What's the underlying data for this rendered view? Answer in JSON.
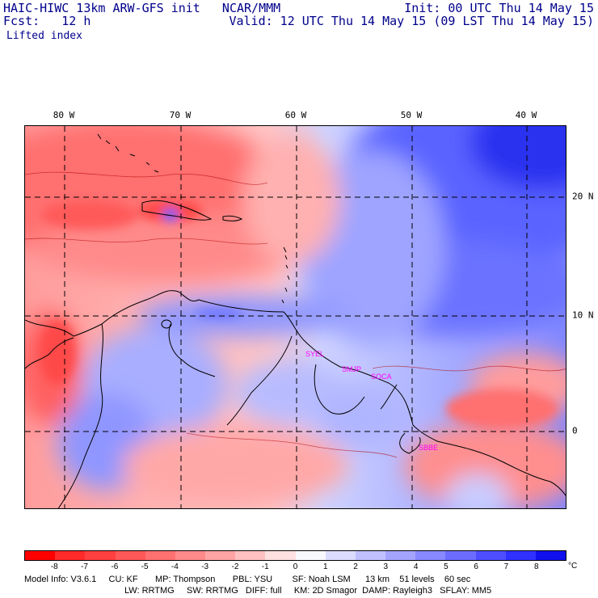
{
  "header": {
    "line1_left": "HAIC-HIWC 13km ARW-GFS init   NCAR/MMM",
    "line1_right": "Init: 00 UTC Thu 14 May 15",
    "line2_left": "Fcst:   12 h",
    "line2_right": "Valid: 12 UTC Thu 14 May 15 (09 LST Thu 14 May 15)",
    "field": "Lifted index"
  },
  "map": {
    "lon_labels": [
      "80 W",
      "70 W",
      "60 W",
      "50 W",
      "40 W"
    ],
    "lat_labels": [
      "20 N",
      "10 N",
      "0"
    ],
    "stations": [
      "SYEL",
      "SMJP",
      "SOCA",
      "SBBE"
    ]
  },
  "colorbar": {
    "unit": "°C",
    "ticks": [
      "-8",
      "-7",
      "-6",
      "-5",
      "-4",
      "-3",
      "-2",
      "-1",
      "0",
      "1",
      "2",
      "3",
      "4",
      "5",
      "6",
      "7",
      "8"
    ],
    "colors": [
      "#ff0000",
      "#ff2a2a",
      "#ff4040",
      "#ff5858",
      "#ff7070",
      "#ff8a8a",
      "#ffa4a4",
      "#ffc0c0",
      "#ffe0e0",
      "#f8f8ff",
      "#dcdcff",
      "#c0c0ff",
      "#a4a4ff",
      "#8888ff",
      "#6c6cff",
      "#4e4eff",
      "#3030ff",
      "#1010ee"
    ]
  },
  "footer": {
    "line1": "Model Info: V3.6.1     CU: KF       MP: Thompson       PBL: YSU        SF: Noah LSM      13 km    51 levels    60 sec",
    "line2": "LW: RRTMG     SW: RRTMG   DIFF: full     KM: 2D Smagor  DAMP: Rayleigh3   SFLAY: MM5"
  }
}
